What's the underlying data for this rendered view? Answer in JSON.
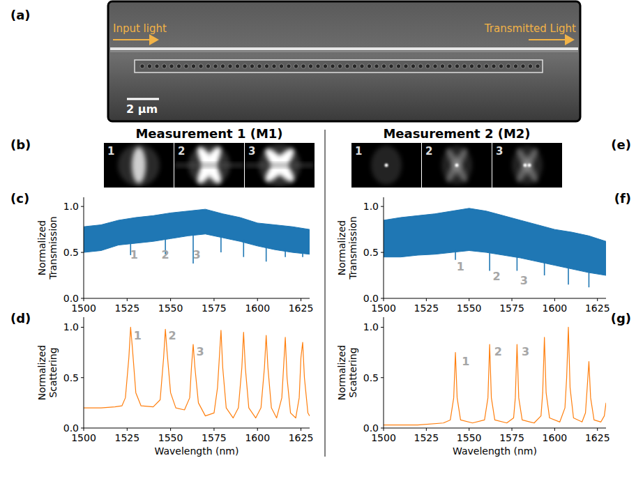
{
  "figure": {
    "panel_labels": {
      "a": "(a)",
      "b": "(b)",
      "c": "(c)",
      "d": "(d)",
      "e": "(e)",
      "f": "(f)",
      "g": "(g)"
    },
    "sem": {
      "input": "Input light",
      "output": "Transmitted Light",
      "scale_bar": "2 µm"
    },
    "headings": [
      "Measurement 1 (M1)",
      "Measurement 2 (M2)"
    ],
    "mode_images": [
      {
        "labels": [
          "1",
          "2",
          "3"
        ]
      },
      {
        "labels": [
          "1",
          "2",
          "3"
        ]
      }
    ]
  },
  "chart_data": [
    {
      "type": "band",
      "color": "#1f77b4",
      "ylabel": "Normalized Transmission",
      "x": [
        1500,
        1510,
        1520,
        1530,
        1540,
        1550,
        1560,
        1570,
        1580,
        1590,
        1600,
        1610,
        1620,
        1630
      ],
      "high": [
        0.78,
        0.8,
        0.85,
        0.88,
        0.9,
        0.93,
        0.95,
        0.97,
        0.92,
        0.88,
        0.82,
        0.8,
        0.78,
        0.75
      ],
      "low": [
        0.5,
        0.52,
        0.58,
        0.6,
        0.62,
        0.65,
        0.68,
        0.7,
        0.66,
        0.62,
        0.57,
        0.53,
        0.5,
        0.48
      ],
      "dips": {
        "x": [
          1527,
          1547,
          1563,
          1579,
          1592,
          1605,
          1616,
          1626
        ],
        "values": [
          0.47,
          0.48,
          0.38,
          0.5,
          0.45,
          0.4,
          0.45,
          0.45
        ]
      },
      "annotations": [
        {
          "text": "1",
          "x": 1529,
          "y": 0.43
        },
        {
          "text": "2",
          "x": 1547,
          "y": 0.43
        },
        {
          "text": "3",
          "x": 1565,
          "y": 0.43
        }
      ],
      "xlim": [
        1500,
        1630
      ],
      "xticks": [
        1500,
        1525,
        1550,
        1575,
        1600,
        1625
      ],
      "ylim": [
        0,
        1.1
      ],
      "yticks": [
        {
          "value": 0,
          "label": "0.0"
        },
        {
          "value": 0.5,
          "label": "0.5"
        },
        {
          "value": 1,
          "label": "1.0"
        }
      ]
    },
    {
      "type": "line",
      "color": "#ff7f0e",
      "ylabel": "Normalized Scattering",
      "xlabel": "Wavelength (nm)",
      "x": [
        1500,
        1510,
        1518,
        1522,
        1524,
        1526,
        1527,
        1528,
        1530,
        1533,
        1540,
        1544,
        1546,
        1547,
        1548,
        1550,
        1553,
        1558,
        1561,
        1562,
        1563,
        1564,
        1566,
        1570,
        1575,
        1577,
        1579,
        1580,
        1582,
        1586,
        1589,
        1591,
        1592,
        1593,
        1595,
        1599,
        1602,
        1604,
        1605,
        1606,
        1608,
        1611,
        1614,
        1616,
        1617,
        1619,
        1622,
        1624,
        1625,
        1626,
        1627,
        1629,
        1630
      ],
      "values": [
        0.2,
        0.2,
        0.21,
        0.22,
        0.3,
        0.7,
        1.0,
        0.8,
        0.35,
        0.22,
        0.21,
        0.28,
        0.7,
        0.98,
        0.75,
        0.35,
        0.2,
        0.18,
        0.3,
        0.6,
        0.83,
        0.6,
        0.25,
        0.12,
        0.15,
        0.4,
        0.97,
        0.6,
        0.2,
        0.1,
        0.2,
        0.6,
        0.95,
        0.6,
        0.2,
        0.1,
        0.2,
        0.6,
        0.92,
        0.6,
        0.2,
        0.1,
        0.3,
        0.9,
        0.5,
        0.15,
        0.1,
        0.3,
        0.7,
        0.85,
        0.5,
        0.15,
        0.12
      ],
      "annotations": [
        {
          "text": "1",
          "x": 1531,
          "y": 0.88
        },
        {
          "text": "2",
          "x": 1551,
          "y": 0.88
        },
        {
          "text": "3",
          "x": 1567,
          "y": 0.72
        }
      ],
      "xlim": [
        1500,
        1630
      ],
      "xticks": [
        1500,
        1525,
        1550,
        1575,
        1600,
        1625
      ],
      "ylim": [
        0,
        1.1
      ],
      "yticks": [
        {
          "value": 0,
          "label": "0.0"
        },
        {
          "value": 0.5,
          "label": "0.5"
        },
        {
          "value": 1,
          "label": "1.0"
        }
      ]
    },
    {
      "type": "band",
      "color": "#1f77b4",
      "ylabel": "Normalized Transmission",
      "x": [
        1500,
        1510,
        1520,
        1530,
        1540,
        1550,
        1560,
        1570,
        1580,
        1590,
        1600,
        1610,
        1620,
        1630
      ],
      "high": [
        0.85,
        0.88,
        0.9,
        0.92,
        0.95,
        0.98,
        0.95,
        0.9,
        0.85,
        0.8,
        0.75,
        0.72,
        0.68,
        0.62
      ],
      "low": [
        0.45,
        0.45,
        0.47,
        0.48,
        0.5,
        0.52,
        0.5,
        0.47,
        0.44,
        0.4,
        0.36,
        0.32,
        0.28,
        0.25
      ],
      "dips": {
        "x": [
          1542,
          1562,
          1578,
          1594,
          1608,
          1620
        ],
        "values": [
          0.42,
          0.3,
          0.3,
          0.25,
          0.15,
          0.12
        ]
      },
      "annotations": [
        {
          "text": "1",
          "x": 1545,
          "y": 0.3
        },
        {
          "text": "2",
          "x": 1566,
          "y": 0.2
        },
        {
          "text": "3",
          "x": 1582,
          "y": 0.15
        }
      ],
      "xlim": [
        1500,
        1630
      ],
      "xticks": [
        1500,
        1525,
        1550,
        1575,
        1600,
        1625
      ],
      "ylim": [
        0,
        1.1
      ],
      "yticks": [
        {
          "value": 0,
          "label": "0.0"
        },
        {
          "value": 0.5,
          "label": "0.5"
        },
        {
          "value": 1,
          "label": "1.0"
        }
      ]
    },
    {
      "type": "line",
      "color": "#ff7f0e",
      "ylabel": "Normalized Scattering",
      "xlabel": "Wavelength (nm)",
      "x": [
        1500,
        1520,
        1535,
        1539,
        1541,
        1542,
        1543,
        1545,
        1552,
        1559,
        1561,
        1562,
        1563,
        1565,
        1572,
        1576,
        1577,
        1578,
        1579,
        1581,
        1588,
        1592,
        1593,
        1594,
        1595,
        1597,
        1603,
        1606,
        1607,
        1608,
        1609,
        1611,
        1616,
        1618,
        1619,
        1620,
        1621,
        1623,
        1627,
        1629,
        1630
      ],
      "values": [
        0.03,
        0.03,
        0.05,
        0.08,
        0.3,
        0.75,
        0.3,
        0.08,
        0.05,
        0.08,
        0.3,
        0.83,
        0.3,
        0.08,
        0.05,
        0.1,
        0.3,
        0.83,
        0.3,
        0.08,
        0.05,
        0.12,
        0.35,
        0.9,
        0.35,
        0.1,
        0.06,
        0.2,
        0.5,
        1.0,
        0.4,
        0.1,
        0.06,
        0.15,
        0.4,
        0.66,
        0.3,
        0.08,
        0.06,
        0.12,
        0.25
      ],
      "annotations": [
        {
          "text": "1",
          "x": 1548,
          "y": 0.62
        },
        {
          "text": "2",
          "x": 1567,
          "y": 0.72
        },
        {
          "text": "3",
          "x": 1583,
          "y": 0.72
        }
      ],
      "xlim": [
        1500,
        1630
      ],
      "xticks": [
        1500,
        1525,
        1550,
        1575,
        1600,
        1625
      ],
      "ylim": [
        0,
        1.1
      ],
      "yticks": [
        {
          "value": 0,
          "label": "0.0"
        },
        {
          "value": 0.5,
          "label": "0.5"
        },
        {
          "value": 1,
          "label": "1.0"
        }
      ]
    }
  ]
}
